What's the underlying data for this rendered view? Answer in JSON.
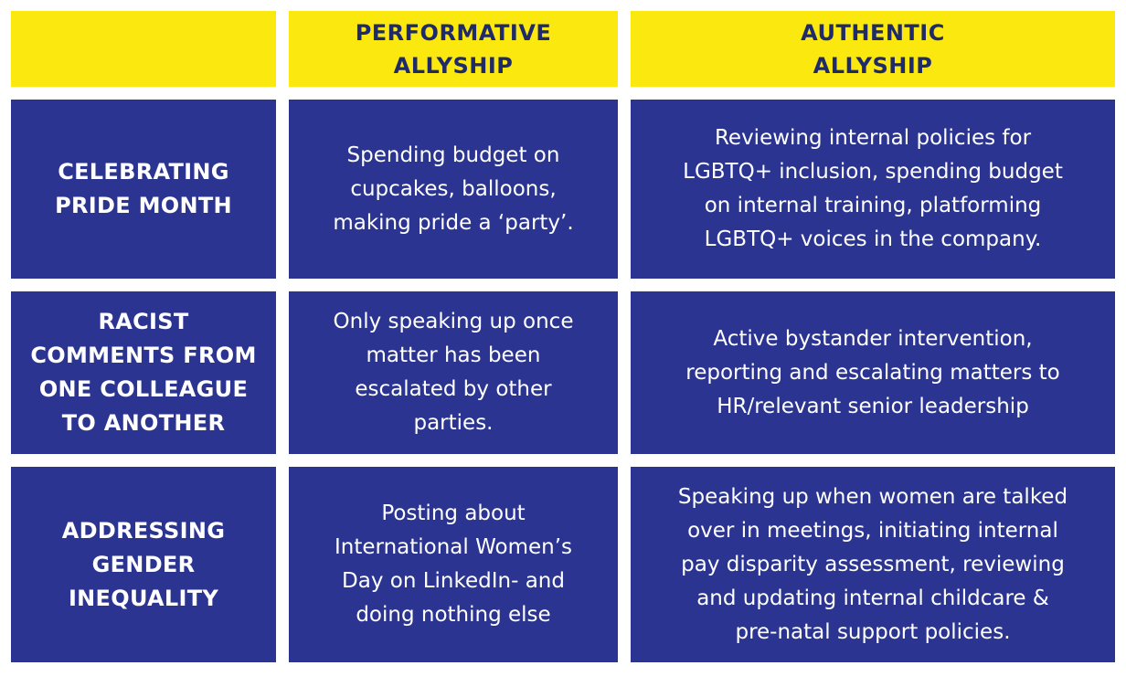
{
  "colors": {
    "header_yellow": "#fbe80f",
    "header_text": "#1f2a6b",
    "cell_navy": "#2b3591",
    "cell_text": "#ffffff"
  },
  "header": {
    "blank": "",
    "performative": "PERFORMATIVE\nALLYSHIP",
    "authentic": "AUTHENTIC\nALLYSHIP"
  },
  "rows": [
    {
      "label": "CELEBRATING\nPRIDE MONTH",
      "performative": "Spending budget on\ncupcakes, balloons,\nmaking pride a ‘party’.",
      "authentic": "Reviewing internal policies for\nLGBTQ+ inclusion, spending budget\non internal training, platforming\nLGBTQ+ voices in the company."
    },
    {
      "label": "RACIST\nCOMMENTS FROM\nONE COLLEAGUE\nTO ANOTHER",
      "performative": "Only speaking up once\nmatter has been\nescalated by other\nparties.",
      "authentic": "Active bystander intervention,\nreporting and escalating matters to\nHR/relevant senior leadership"
    },
    {
      "label": "ADDRESSING\nGENDER\nINEQUALITY",
      "performative": "Posting about\nInternational Women’s\nDay on LinkedIn- and\ndoing nothing else",
      "authentic": "Speaking up when women are talked\nover in meetings, initiating internal\npay disparity assessment, reviewing\nand updating internal childcare &\npre-natal support policies."
    }
  ]
}
